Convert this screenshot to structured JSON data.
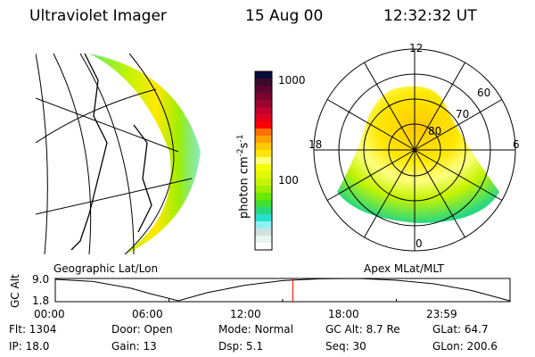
{
  "header": {
    "instrument": "Ultraviolet Imager",
    "date": "15 Aug 00",
    "time": "12:32:32 UT"
  },
  "colorbar": {
    "label": "photon cm",
    "exp1": "-2",
    "unit2": "s",
    "exp2": "-1",
    "ticks": [
      "1000",
      "100"
    ],
    "colors": [
      "#0b0b3a",
      "#3a0a2e",
      "#5a0830",
      "#7a0630",
      "#9a0530",
      "#c00030",
      "#e00020",
      "#ff0000",
      "#ff7000",
      "#ffa000",
      "#ffc800",
      "#ffe800",
      "#ffff80",
      "#f4ff00",
      "#e0f800",
      "#c4f400",
      "#a0ee00",
      "#6ae800",
      "#40e030",
      "#28d880",
      "#28e0d0",
      "#90f0f0",
      "#d0e0e0",
      "#e8f4ee",
      "#ffffff"
    ]
  },
  "left_panel": {
    "label": "Geographic Lat/Lon"
  },
  "right_panel": {
    "label": "Apex MLat/MLT",
    "mlt_labels": [
      "12",
      "18",
      "6",
      "0"
    ],
    "lat_labels": [
      "60",
      "70",
      "80"
    ]
  },
  "chart_data": {
    "type": "line",
    "title": "",
    "ylabel": "GC Alt",
    "xlabel": "",
    "yticks": [
      "9.0",
      "1.8"
    ],
    "xticks": [
      "00:00",
      "06:00",
      "12:00",
      "18:00",
      "23:59"
    ],
    "ylim": [
      1.5,
      9.3
    ],
    "xlim": [
      0,
      24
    ],
    "x": [
      0,
      2,
      4,
      5,
      6.5,
      8,
      10,
      12,
      14,
      16,
      18,
      20,
      22,
      23.98
    ],
    "y": [
      9.0,
      8.3,
      6.0,
      4.2,
      1.8,
      4.5,
      7.0,
      8.6,
      9.2,
      9.3,
      8.7,
      7.5,
      5.2,
      1.8
    ],
    "current_time": 12.54,
    "current_marker_color": "#ff0000"
  },
  "info": [
    {
      "label": "Flt:",
      "value": "1304"
    },
    {
      "label": "Door:",
      "value": "Open"
    },
    {
      "label": "Mode:",
      "value": "Normal"
    },
    {
      "label": "GC Alt:",
      "value": "8.7 Re"
    },
    {
      "label": "GLat:",
      "value": "64.7"
    },
    {
      "label": "IP:",
      "value": "18.0"
    },
    {
      "label": "Gain:",
      "value": "13"
    },
    {
      "label": "Dsp:",
      "value": "5.1"
    },
    {
      "label": "Seq:",
      "value": "30"
    },
    {
      "label": "GLon:",
      "value": "200.6"
    }
  ]
}
